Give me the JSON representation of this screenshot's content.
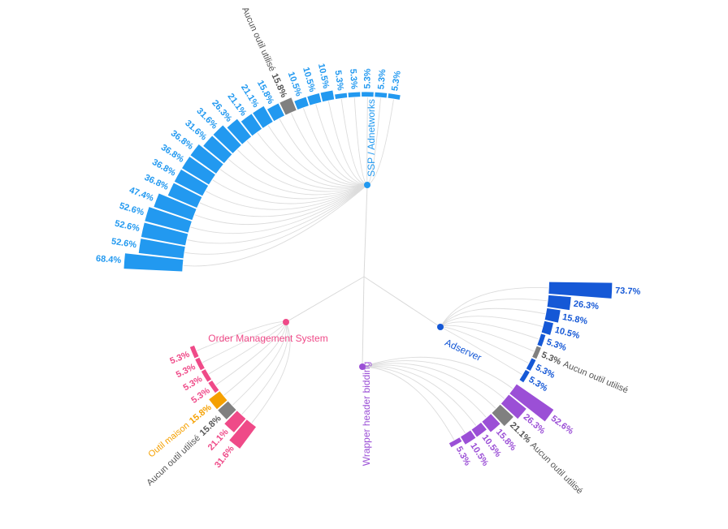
{
  "chart_data": {
    "type": "radial-bar",
    "unit": "%",
    "groups": [
      {
        "id": "ssp",
        "name": "SSP / Adnetworks",
        "color": "#2299f0",
        "items": [
          {
            "value": 68.4,
            "label": "",
            "color": "#2299f0"
          },
          {
            "value": 52.6,
            "label": "",
            "color": "#2299f0"
          },
          {
            "value": 52.6,
            "label": "",
            "color": "#2299f0"
          },
          {
            "value": 52.6,
            "label": "",
            "color": "#2299f0"
          },
          {
            "value": 47.4,
            "label": "",
            "color": "#2299f0"
          },
          {
            "value": 36.8,
            "label": "",
            "color": "#2299f0"
          },
          {
            "value": 36.8,
            "label": "",
            "color": "#2299f0"
          },
          {
            "value": 36.8,
            "label": "",
            "color": "#2299f0"
          },
          {
            "value": 36.8,
            "label": "",
            "color": "#2299f0"
          },
          {
            "value": 31.6,
            "label": "",
            "color": "#2299f0"
          },
          {
            "value": 31.6,
            "label": "",
            "color": "#2299f0"
          },
          {
            "value": 26.3,
            "label": "",
            "color": "#2299f0"
          },
          {
            "value": 21.1,
            "label": "",
            "color": "#2299f0"
          },
          {
            "value": 21.1,
            "label": "",
            "color": "#2299f0"
          },
          {
            "value": 15.8,
            "label": "",
            "color": "#2299f0"
          },
          {
            "value": 15.8,
            "label": "Aucun outil utilisé",
            "color": "#808080"
          },
          {
            "value": 10.5,
            "label": "",
            "color": "#2299f0"
          },
          {
            "value": 10.5,
            "label": "",
            "color": "#2299f0"
          },
          {
            "value": 10.5,
            "label": "",
            "color": "#2299f0"
          },
          {
            "value": 5.3,
            "label": "",
            "color": "#2299f0"
          },
          {
            "value": 5.3,
            "label": "",
            "color": "#2299f0"
          },
          {
            "value": 5.3,
            "label": "",
            "color": "#2299f0"
          },
          {
            "value": 5.3,
            "label": "",
            "color": "#2299f0"
          },
          {
            "value": 5.3,
            "label": "",
            "color": "#2299f0"
          }
        ]
      },
      {
        "id": "adserver",
        "name": "Adserver",
        "color": "#1558d6",
        "items": [
          {
            "value": 73.7,
            "label": "",
            "color": "#1558d6"
          },
          {
            "value": 26.3,
            "label": "",
            "color": "#1558d6"
          },
          {
            "value": 15.8,
            "label": "",
            "color": "#1558d6"
          },
          {
            "value": 10.5,
            "label": "",
            "color": "#1558d6"
          },
          {
            "value": 5.3,
            "label": "",
            "color": "#1558d6"
          },
          {
            "value": 5.3,
            "label": "Aucun outil utilisé",
            "color": "#808080"
          },
          {
            "value": 5.3,
            "label": "",
            "color": "#1558d6"
          },
          {
            "value": 5.3,
            "label": "",
            "color": "#1558d6"
          }
        ]
      },
      {
        "id": "wrapper",
        "name": "Wrapper header bidding",
        "color": "#9b4fd6",
        "items": [
          {
            "value": 52.6,
            "label": "",
            "color": "#9b4fd6"
          },
          {
            "value": 26.3,
            "label": "",
            "color": "#9b4fd6"
          },
          {
            "value": 21.1,
            "label": "Aucun outil utilisé",
            "color": "#808080"
          },
          {
            "value": 15.8,
            "label": "",
            "color": "#9b4fd6"
          },
          {
            "value": 10.5,
            "label": "",
            "color": "#9b4fd6"
          },
          {
            "value": 10.5,
            "label": "",
            "color": "#9b4fd6"
          },
          {
            "value": 5.3,
            "label": "",
            "color": "#9b4fd6"
          }
        ]
      },
      {
        "id": "oms",
        "name": "Order Management System",
        "color": "#ef4a88",
        "items": [
          {
            "value": 31.6,
            "label": "",
            "color": "#ef4a88"
          },
          {
            "value": 21.1,
            "label": "",
            "color": "#ef4a88"
          },
          {
            "value": 15.8,
            "label": "Aucun outil utilisé",
            "color": "#808080"
          },
          {
            "value": 15.8,
            "label": "Outil maison",
            "color": "#f5a000"
          },
          {
            "value": 5.3,
            "label": "",
            "color": "#ef4a88"
          },
          {
            "value": 5.3,
            "label": "",
            "color": "#ef4a88"
          },
          {
            "value": 5.3,
            "label": "",
            "color": "#ef4a88"
          },
          {
            "value": 5.3,
            "label": "",
            "color": "#ef4a88"
          }
        ]
      }
    ]
  }
}
